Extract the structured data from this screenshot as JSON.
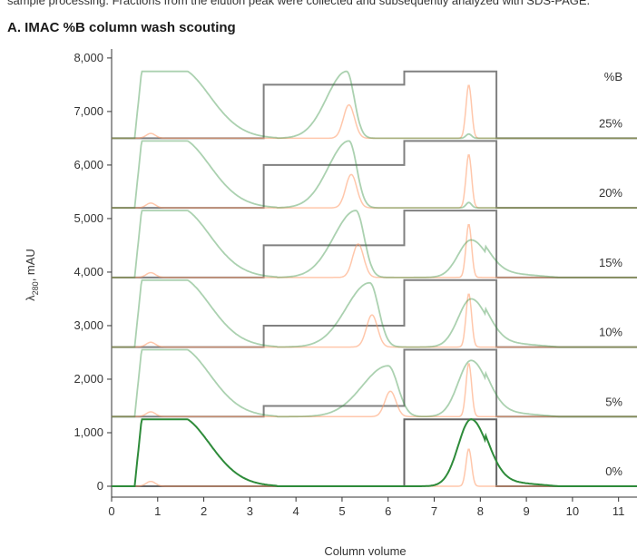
{
  "header": {
    "top_strip_text": "sample processing. Fractions from the elution peak were collected and subsequently analyzed with SDS-PAGE.",
    "title": "A. IMAC %B column wash scouting"
  },
  "chart_data": {
    "type": "line",
    "title": "A. IMAC %B column wash scouting",
    "xlabel": "Column volume",
    "ylabel_main": "λ",
    "ylabel_sub": "280",
    "ylabel_unit": ", mAU",
    "xlim": [
      0,
      11.4
    ],
    "ylim": [
      0,
      8100
    ],
    "x_ticks": [
      0,
      1,
      2,
      3,
      4,
      5,
      6,
      7,
      8,
      9,
      10,
      11
    ],
    "y_ticks": [
      0,
      1000,
      2000,
      3000,
      4000,
      5000,
      6000,
      7000,
      8000
    ],
    "y_tick_labels": [
      "0",
      "1,000",
      "2,000",
      "3,000",
      "4,000",
      "5,000",
      "6,000",
      "7,000",
      "8,000"
    ],
    "grid": false,
    "legend_header": "%B",
    "colors": {
      "uv": "#2e8b3a",
      "conc": "#ff9966",
      "step": "#555555",
      "axis": "#333333"
    },
    "traces": [
      {
        "label": "0%",
        "baseline": 0,
        "wash_pct": 0,
        "plateau": 1250,
        "eluate_center": 5.2,
        "eluate_height": 0,
        "eluate_width": 0.45,
        "elution_height": 1250,
        "opacity": 1.0
      },
      {
        "label": "5%",
        "baseline": 1300,
        "wash_pct": 5,
        "plateau": 1250,
        "eluate_center": 6.0,
        "eluate_height": 950,
        "eluate_width": 0.35,
        "elution_height": 1050,
        "opacity": 0.4
      },
      {
        "label": "10%",
        "baseline": 2600,
        "wash_pct": 10,
        "plateau": 1250,
        "eluate_center": 5.6,
        "eluate_height": 1200,
        "eluate_width": 0.32,
        "elution_height": 900,
        "opacity": 0.4
      },
      {
        "label": "15%",
        "baseline": 3900,
        "wash_pct": 15,
        "plateau": 1250,
        "eluate_center": 5.3,
        "eluate_height": 1250,
        "eluate_width": 0.3,
        "elution_height": 700,
        "opacity": 0.4
      },
      {
        "label": "20%",
        "baseline": 5200,
        "wash_pct": 20,
        "plateau": 1250,
        "eluate_center": 5.15,
        "eluate_height": 1250,
        "eluate_width": 0.28,
        "elution_height": 100,
        "opacity": 0.4
      },
      {
        "label": "25%",
        "baseline": 6500,
        "wash_pct": 25,
        "plateau": 1250,
        "eluate_center": 5.1,
        "eluate_height": 1250,
        "eluate_width": 0.27,
        "elution_height": 80,
        "opacity": 0.4
      }
    ]
  }
}
